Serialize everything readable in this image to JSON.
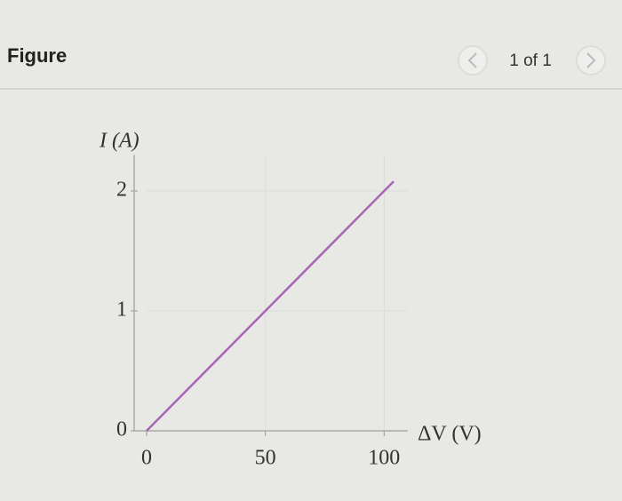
{
  "header": {
    "title": "Figure",
    "pager": "1 of 1"
  },
  "chart_data": {
    "type": "line",
    "x_label": "ΔV (V)",
    "y_label": "I (A)",
    "x": [
      0,
      104
    ],
    "series": [
      {
        "color": "#a866b4",
        "values": [
          0,
          2.08
        ]
      }
    ],
    "xlim": [
      0,
      110
    ],
    "ylim": [
      0,
      2.3
    ],
    "xticks": [
      0,
      50,
      100
    ],
    "yticks": [
      0,
      1,
      2
    ],
    "grid": true
  }
}
